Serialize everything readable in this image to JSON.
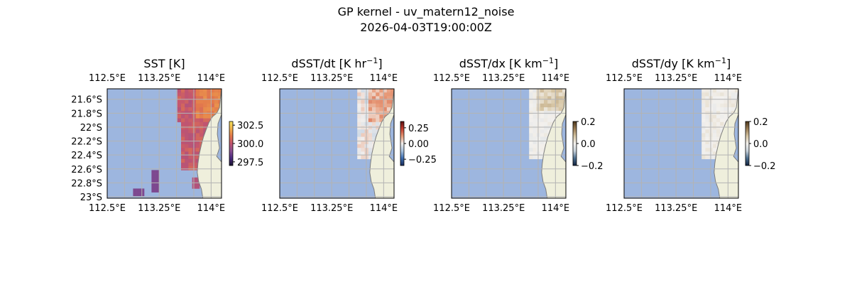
{
  "figure": {
    "title_line1": "GP kernel - uv_matern12_noise",
    "title_line2": "2026-04-03T19:00:00Z"
  },
  "colors": {
    "ocean": "#9db6df",
    "land": "#efefdc",
    "coast": "#7d7d7d",
    "grid": "#b3b3b3",
    "sst_high": "#d35f57",
    "sst_low": "#8a4f93",
    "positive": "#ec8a5e",
    "neutral": "#f4f4f4",
    "negative": "#aec3de",
    "dx_positive": "#c7b193"
  },
  "chart_data": [
    {
      "type": "heatmap",
      "title": "SST [K]",
      "x_ticks": [
        "112.5°E",
        "113.25°E",
        "114°E"
      ],
      "x_tick_values": [
        112.5,
        113.25,
        114.0
      ],
      "y_ticks": [
        "21.6°S",
        "21.8°S",
        "22°S",
        "22.2°S",
        "22.4°S",
        "22.6°S",
        "22.8°S",
        "23°S"
      ],
      "y_tick_values": [
        -21.6,
        -21.8,
        -22.0,
        -22.2,
        -22.4,
        -22.6,
        -22.8,
        -23.0
      ],
      "show_y_ticks": true,
      "xlim": [
        112.5,
        114.15
      ],
      "ylim": [
        -23.02,
        -21.45
      ],
      "colorbar": {
        "ticks": [
          "302.5",
          "300.0",
          "297.5"
        ],
        "tick_values": [
          302.5,
          300.0,
          297.5
        ],
        "range": [
          297.0,
          303.0
        ],
        "colormap": "thermal"
      },
      "grid": true
    },
    {
      "type": "heatmap",
      "title": "dSST/dt [K hr",
      "title_sup": "−1",
      "title_end": "]",
      "x_ticks": [
        "112.5°E",
        "113.25°E",
        "114°E"
      ],
      "x_tick_values": [
        112.5,
        113.25,
        114.0
      ],
      "show_y_ticks": false,
      "xlim": [
        112.5,
        114.15
      ],
      "ylim": [
        -23.02,
        -21.45
      ],
      "colorbar": {
        "ticks": [
          "0.25",
          "0.00",
          "−0.25"
        ],
        "tick_values": [
          0.25,
          0.0,
          -0.25
        ],
        "range": [
          -0.35,
          0.35
        ],
        "colormap": "balance"
      },
      "grid": true
    },
    {
      "type": "heatmap",
      "title": "dSST/dx [K km",
      "title_sup": "−1",
      "title_end": "]",
      "x_ticks": [
        "112.5°E",
        "113.25°E",
        "114°E"
      ],
      "x_tick_values": [
        112.5,
        113.25,
        114.0
      ],
      "show_y_ticks": false,
      "xlim": [
        112.5,
        114.15
      ],
      "ylim": [
        -23.02,
        -21.45
      ],
      "colorbar": {
        "ticks": [
          "0.2",
          "0.0",
          "−0.2"
        ],
        "tick_values": [
          0.2,
          0.0,
          -0.2
        ],
        "range": [
          -0.2,
          0.2
        ],
        "colormap": "diff"
      },
      "grid": true
    },
    {
      "type": "heatmap",
      "title": "dSST/dy [K km",
      "title_sup": "−1",
      "title_end": "]",
      "x_ticks": [
        "112.5°E",
        "113.25°E",
        "114°E"
      ],
      "x_tick_values": [
        112.5,
        113.25,
        114.0
      ],
      "show_y_ticks": false,
      "xlim": [
        112.5,
        114.15
      ],
      "ylim": [
        -23.02,
        -21.45
      ],
      "colorbar": {
        "ticks": [
          "0.2",
          "0.0",
          "−0.2"
        ],
        "tick_values": [
          0.2,
          0.0,
          -0.2
        ],
        "range": [
          -0.2,
          0.2
        ],
        "colormap": "diff"
      },
      "grid": true
    }
  ]
}
